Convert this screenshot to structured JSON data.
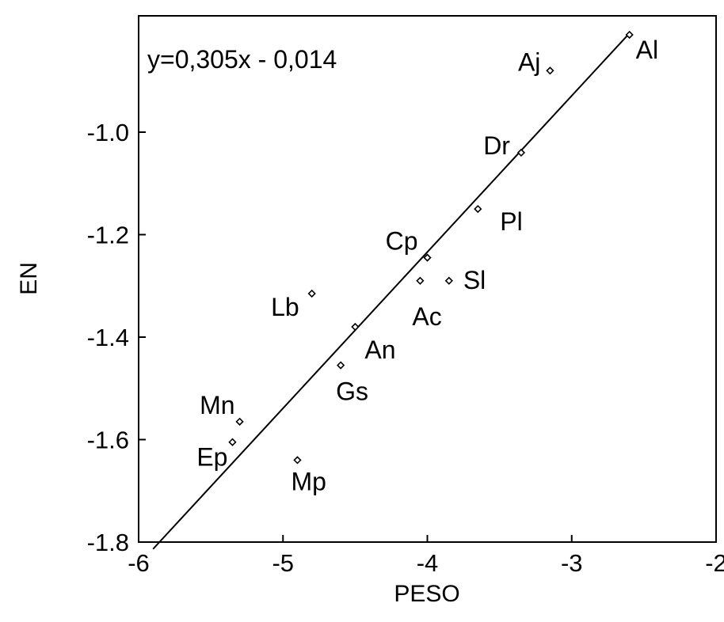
{
  "chart_data": {
    "type": "scatter",
    "title": "",
    "xlabel": "PESO",
    "ylabel": "EN",
    "xlim": [
      -6,
      -2
    ],
    "ylim": [
      -1.8,
      -0.8
    ],
    "x_ticks": [
      -6,
      -5,
      -4,
      -3,
      -2
    ],
    "x_tick_labels": [
      "-6",
      "-5",
      "-4",
      "-3",
      "-2"
    ],
    "y_ticks": [
      -1.8,
      -1.6,
      -1.4,
      -1.2,
      -1.0
    ],
    "y_tick_labels": [
      "-1.8",
      "-1.6",
      "-1.4",
      "-1.2",
      "-1.0"
    ],
    "grid": false,
    "annotation": "y=0,305x - 0,014",
    "regression": {
      "slope": 0.305,
      "intercept": -0.014,
      "x_range": [
        -5.9,
        -2.6
      ]
    },
    "points": [
      {
        "label": "Al",
        "x": -2.6,
        "y": -0.81
      },
      {
        "label": "Aj",
        "x": -3.15,
        "y": -0.88
      },
      {
        "label": "Dr",
        "x": -3.35,
        "y": -1.04
      },
      {
        "label": "Pl",
        "x": -3.65,
        "y": -1.15
      },
      {
        "label": "Cp",
        "x": -4.0,
        "y": -1.245
      },
      {
        "label": "Sl",
        "x": -3.85,
        "y": -1.29
      },
      {
        "label": "Ac",
        "x": -4.05,
        "y": -1.29
      },
      {
        "label": "Lb",
        "x": -4.8,
        "y": -1.315
      },
      {
        "label": "An",
        "x": -4.5,
        "y": -1.38
      },
      {
        "label": "Gs",
        "x": -4.6,
        "y": -1.455
      },
      {
        "label": "Mn",
        "x": -5.3,
        "y": -1.565
      },
      {
        "label": "Ep",
        "x": -5.35,
        "y": -1.605
      },
      {
        "label": "Mp",
        "x": -4.9,
        "y": -1.64
      }
    ]
  }
}
